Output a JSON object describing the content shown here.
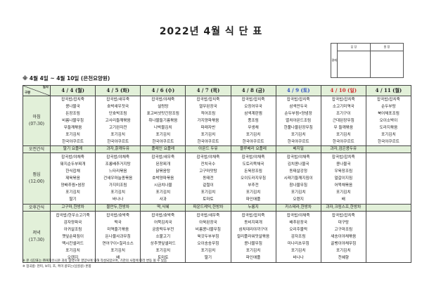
{
  "title": "2022년 4월 식 단 표",
  "approval": {
    "label": "결재",
    "cols": [
      "담 당",
      "원 장"
    ]
  },
  "subtitle": "※ 4월 4일 ~ 4월 10일 (은천요양원)",
  "corner": {
    "top": "일자",
    "bottom": "구분"
  },
  "days": [
    "4 / 4 (월)",
    "4 / 5 (화)",
    "4 / 6 (수)",
    "4 / 7 (목)",
    "4 / 8 (금)",
    "4 / 9 (토)",
    "4 / 10 (일)",
    "4 / 11 (월)"
  ],
  "colors": {
    "header_bg": "#e2f0d9",
    "saturday": "#2f4fbf",
    "sunday": "#d03030"
  },
  "rows": {
    "breakfast": {
      "label": "아침",
      "time": "(07:30)",
      "cells": [
        [
          "잡곡밥/잡치죽",
          "콩나물국",
          "돈장조림",
          "비름나물무침",
          "무들깨볶음",
          "포기김치",
          "한국야쿠르트"
        ],
        [
          "잡곡밥/새우죽",
          "호박새우젓국",
          "단호박조림",
          "고사리들깨볶음",
          "고기완자전",
          "포기김치",
          "한국야쿠르트"
        ],
        [
          "잡곡밥/야채죽",
          "설렁탕",
          "표고버섯맛간장조림",
          "취나물들기름볶음",
          "나박물김치",
          "포기김치",
          "한국야쿠르트"
        ],
        [
          "잡곡밥/잡치죽",
          "열무된장국",
          "적어조림",
          "가지양파볶음",
          "파래자반",
          "포기김치",
          "한국야쿠르트"
        ],
        [
          "잡곡밥/잡치죽",
          "오징어무국",
          "삼색계란찜",
          "풍조림",
          "무생채",
          "포기김치",
          "한국야쿠르트"
        ],
        [
          "잡곡밥/잡치죽",
          "삼색만두국",
          "순두부찜•양념장",
          "멸치아몬드조림",
          "한풀나물된장무침",
          "포기김치",
          "한국야쿠르트"
        ],
        [
          "잡곡밥/잡치죽",
          "소고기미역국",
          "조기구이",
          "근대된장무침",
          "무 들깨볶음",
          "포기김치",
          "한국야쿠르트"
        ],
        [
          "잡곡밥/잡치죽",
          "순두부탕",
          "북어채포조림",
          "오이소박이",
          "도라지볶음",
          "포기김치",
          "한국야쿠르트"
        ]
      ]
    },
    "am_snack": {
      "label": "오전간식",
      "cells": [
        "딸기 요플레",
        "과자,칡깨두유",
        "플레인 요플레",
        "아몬드 두유",
        "블루베리 요플레",
        "베지밀",
        "과자,검은콩두유",
        ""
      ]
    },
    "lunch": {
      "label": "점심",
      "time": "(12:00)",
      "cells": [
        [
          "잡곡밥/야채죽",
          "돼지순두부찌개",
          "한식잡채",
          "제육볶음",
          "양배추찜•쌈장",
          "포기김치",
          "딸기"
        ],
        [
          "잡곡밥/야채죽",
          "조롱배추거지탕",
          "느타리볶음",
          "건새우마늘종볶음",
          "가지미조림",
          "포기김치",
          "바나나"
        ],
        [
          "잡곡밥/새우죽",
          "된장찌개",
          "닭볶음탕",
          "호박양파볶음",
          "시금치나물",
          "포기김치",
          "사과"
        ],
        [
          "잡곡밥/야채죽",
          "잔치국수",
          "고구마맛탕",
          "동태전",
          "겉절이",
          "포기김치",
          "토마토"
        ],
        [
          "잡곡밥/야채죽",
          "도토리묵채국",
          "돈육장조림",
          "오이도라지무침",
          "부추전",
          "포기김치",
          "파인애플"
        ],
        [
          "잡곡밥/야채죽",
          "김치콩나물국",
          "동태살강정",
          "시래기들깨지짐이",
          "참나물무침",
          "포기김치",
          "오렌지"
        ],
        [
          "잡곡밥/잡치죽",
          "콩나물국",
          "우육장조림",
          "얼갈이지짐",
          "어묵채볶음",
          "포기김치",
          "배"
        ],
        []
      ]
    },
    "pm_snack": {
      "label": "오후간식",
      "cells": [
        "고구마,한방차",
        "물만두,한방차",
        "떡,식혜",
        "파운드케익,한방차",
        "누룽지",
        "카스테라,한방차",
        "과자,크림스프,한방차",
        ""
      ]
    },
    "dinner": {
      "label": "저녁",
      "time": "(17:30)",
      "cells": [
        [
          "잡곡밥/한우소고기죽",
          "감자양파국",
          "아귀살조림",
          "깻잎순찌짐이",
          "맥시칸샐러드",
          "포기김치",
          "오렌지"
        ],
        [
          "잡곡밥/호박죽",
          "떡국",
          "미역줄기볶음",
          "돈나물사과무침",
          "연어구이•칠리소스",
          "포기김치",
          "배"
        ],
        [
          "잡곡밥/호박죽",
          "어묵김치국",
          "궁중떡두부전",
          "소불고기",
          "상추깻잎샐러드",
          "포기김치",
          "토마토"
        ],
        [
          "잡곡밥/새우죽",
          "아욱된장국",
          "비름콩나물무침",
          "육갓두부부침",
          "오이송송무침",
          "포기김치",
          "딸기"
        ],
        [
          "잡곡밥/잡치죽",
          "동비지찌개",
          "삼치데리야끼구이",
          "컬리플라워맛살볶음",
          "콩나물무침",
          "포기김치",
          "파인애플"
        ],
        [
          "잡곡밥/야채죽",
          "배추된장국",
          "오리주물럭",
          "감자조림",
          "미나리초무침",
          "포기김치",
          "바나나"
        ],
        [
          "잡곡밥/잡치죽",
          "대구탕",
          "고구마조림",
          "새송이야채볶음",
          "골뱅이야채무침",
          "포기김치",
          "천혜향"
        ],
        []
      ]
    }
  },
  "notes": [
    "※ 본 식단표는 ㈜복지유니온 과의 협약으로 영양사에 의해 작성되었으며, 기관의 사정에 따라 변동 될 수 있음",
    "※ 잡곡밥: 현미, 보리, 조, 흑미 콩또는(납골콩) 혼합"
  ]
}
